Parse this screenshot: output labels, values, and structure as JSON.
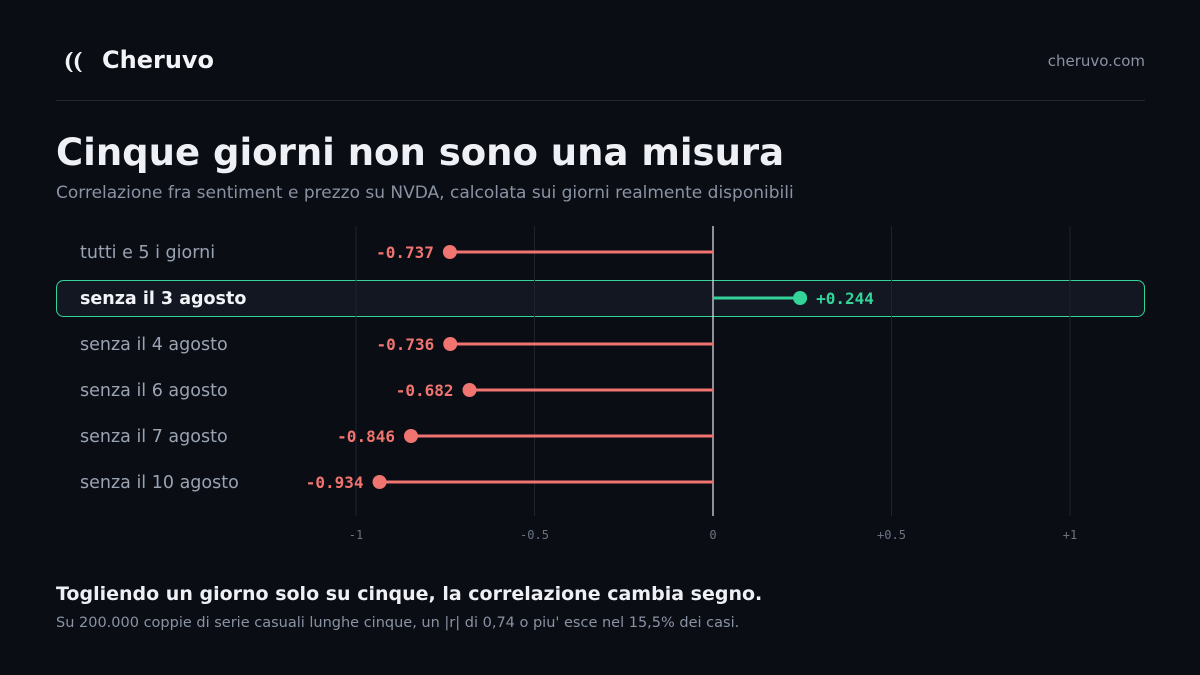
{
  "brand": {
    "name": "Cheruvo",
    "site": "cheruvo.com",
    "logo_icon": "double-arc-icon"
  },
  "title": "Cinque giorni non sono una misura",
  "subtitle": "Correlazione fra sentiment e prezzo su NVDA, calcolata sui giorni realmente disponibili",
  "footer": {
    "headline": "Togliendo un giorno solo su cinque, la correlazione cambia segno.",
    "note": "Su 200.000 coppie di serie casuali lunghe cinque, un |r| di 0,74 o piu' esce nel 15,5% dei casi."
  },
  "colors": {
    "background": "#0a0d14",
    "negative": "#f07470",
    "positive": "#34d399",
    "grid": "#1e2330",
    "zero_line": "#e6e8ee",
    "label": "#9aa3b2",
    "highlight_row_fill": "#121722",
    "highlight_row_border": "#34d399"
  },
  "chart_data": {
    "type": "lollipop",
    "orientation": "horizontal",
    "categories": [
      "tutti e 5 i giorni",
      "senza il 3 agosto",
      "senza il 4 agosto",
      "senza il 6 agosto",
      "senza il 7 agosto",
      "senza il 10 agosto"
    ],
    "values": [
      -0.737,
      0.244,
      -0.736,
      -0.682,
      -0.846,
      -0.934
    ],
    "value_labels": [
      "-0.737",
      "+0.244",
      "-0.736",
      "-0.682",
      "-0.846",
      "-0.934"
    ],
    "highlighted_category": "senza il 3 agosto",
    "xlim": [
      -1,
      1
    ],
    "xticks": [
      -1,
      -0.5,
      0,
      0.5,
      1
    ],
    "xtick_labels": [
      "-1",
      "-0.5",
      "0",
      "+0.5",
      "+1"
    ],
    "grid": true,
    "legend": "none"
  }
}
